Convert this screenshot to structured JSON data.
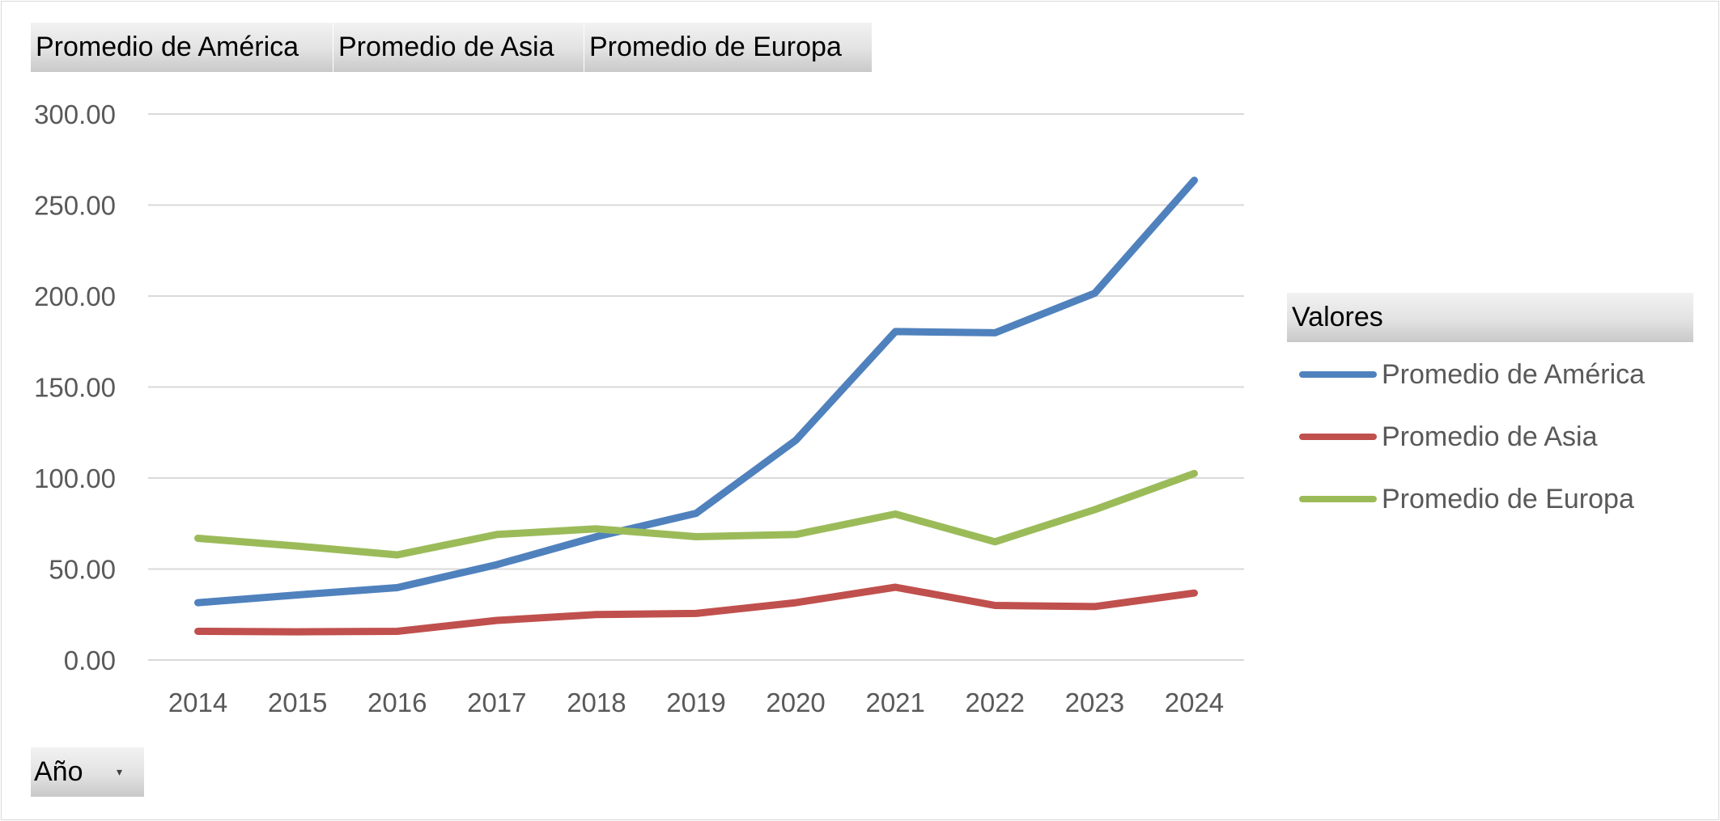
{
  "field_buttons": {
    "america": "Promedio de América",
    "asia": "Promedio de Asia",
    "europa": "Promedio de Europa"
  },
  "axis_field": {
    "label": "Año",
    "dropdown_icon": "dropdown-arrow-icon"
  },
  "legend": {
    "title": "Valores",
    "items": [
      {
        "label": "Promedio de América",
        "color": "#4f81bd"
      },
      {
        "label": "Promedio de Asia",
        "color": "#c0504d"
      },
      {
        "label": "Promedio de Europa",
        "color": "#9bbb59"
      }
    ]
  },
  "chart_data": {
    "type": "line",
    "title": "",
    "xlabel": "",
    "ylabel": "",
    "categories": [
      "2014",
      "2015",
      "2016",
      "2017",
      "2018",
      "2019",
      "2020",
      "2021",
      "2022",
      "2023",
      "2024"
    ],
    "ylim": [
      0,
      300
    ],
    "yticks": [
      "0.00",
      "50.00",
      "100.00",
      "150.00",
      "200.00",
      "250.00",
      "300.00"
    ],
    "grid": true,
    "legend_position": "right",
    "series": [
      {
        "name": "Promedio de América",
        "color": "#4f81bd",
        "values": [
          31.5,
          35.8,
          39.8,
          52.4,
          67.8,
          80.6,
          120.7,
          180.5,
          179.8,
          201.5,
          263.6
        ]
      },
      {
        "name": "Promedio de Asia",
        "color": "#c0504d",
        "values": [
          15.8,
          15.5,
          15.8,
          21.8,
          25.0,
          25.6,
          31.5,
          40.0,
          30.0,
          29.4,
          36.8
        ]
      },
      {
        "name": "Promedio de Europa",
        "color": "#9bbb59",
        "values": [
          66.9,
          62.6,
          57.8,
          69.0,
          72.1,
          67.8,
          69.0,
          80.2,
          65.0,
          82.6,
          102.5
        ]
      }
    ]
  }
}
